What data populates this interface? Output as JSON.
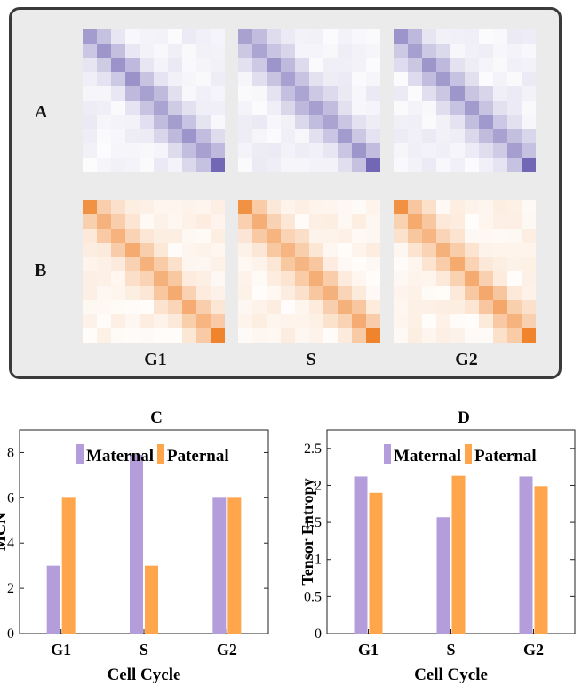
{
  "panel_labels": {
    "a": "A",
    "b": "B",
    "c": "C",
    "d": "D"
  },
  "heatmaps": {
    "columns": [
      "G1",
      "S",
      "G2"
    ],
    "rows": [
      {
        "label": "A",
        "color": "#6a5fb0"
      },
      {
        "label": "B",
        "color": "#ef7d22"
      }
    ],
    "grid_size": 10
  },
  "chart_data": [
    {
      "type": "bar",
      "title": "C",
      "categories": [
        "G1",
        "S",
        "G2"
      ],
      "series": [
        {
          "name": "Maternal",
          "values": [
            3,
            7.9,
            6
          ],
          "color": "#b39ddb"
        },
        {
          "name": "Paternal",
          "values": [
            6,
            3,
            6
          ],
          "color": "#ffa64d"
        }
      ],
      "xlabel": "Cell Cycle",
      "ylabel": "MCN",
      "ylim": [
        0,
        9
      ],
      "yticks": [
        "0",
        "2",
        "4",
        "6",
        "8"
      ],
      "legend": "top-right",
      "grid": false
    },
    {
      "type": "bar",
      "title": "D",
      "categories": [
        "G1",
        "S",
        "G2"
      ],
      "series": [
        {
          "name": "Maternal",
          "values": [
            2.12,
            1.57,
            2.12
          ],
          "color": "#b39ddb"
        },
        {
          "name": "Paternal",
          "values": [
            1.9,
            2.13,
            1.99
          ],
          "color": "#ffa64d"
        }
      ],
      "xlabel": "Cell Cycle",
      "ylabel": "Tensor Entropy",
      "ylim": [
        0,
        2.75
      ],
      "yticks": [
        "0",
        "0.5",
        "1",
        "1.5",
        "2",
        "2.5"
      ],
      "legend": "top-right",
      "grid": false
    }
  ]
}
